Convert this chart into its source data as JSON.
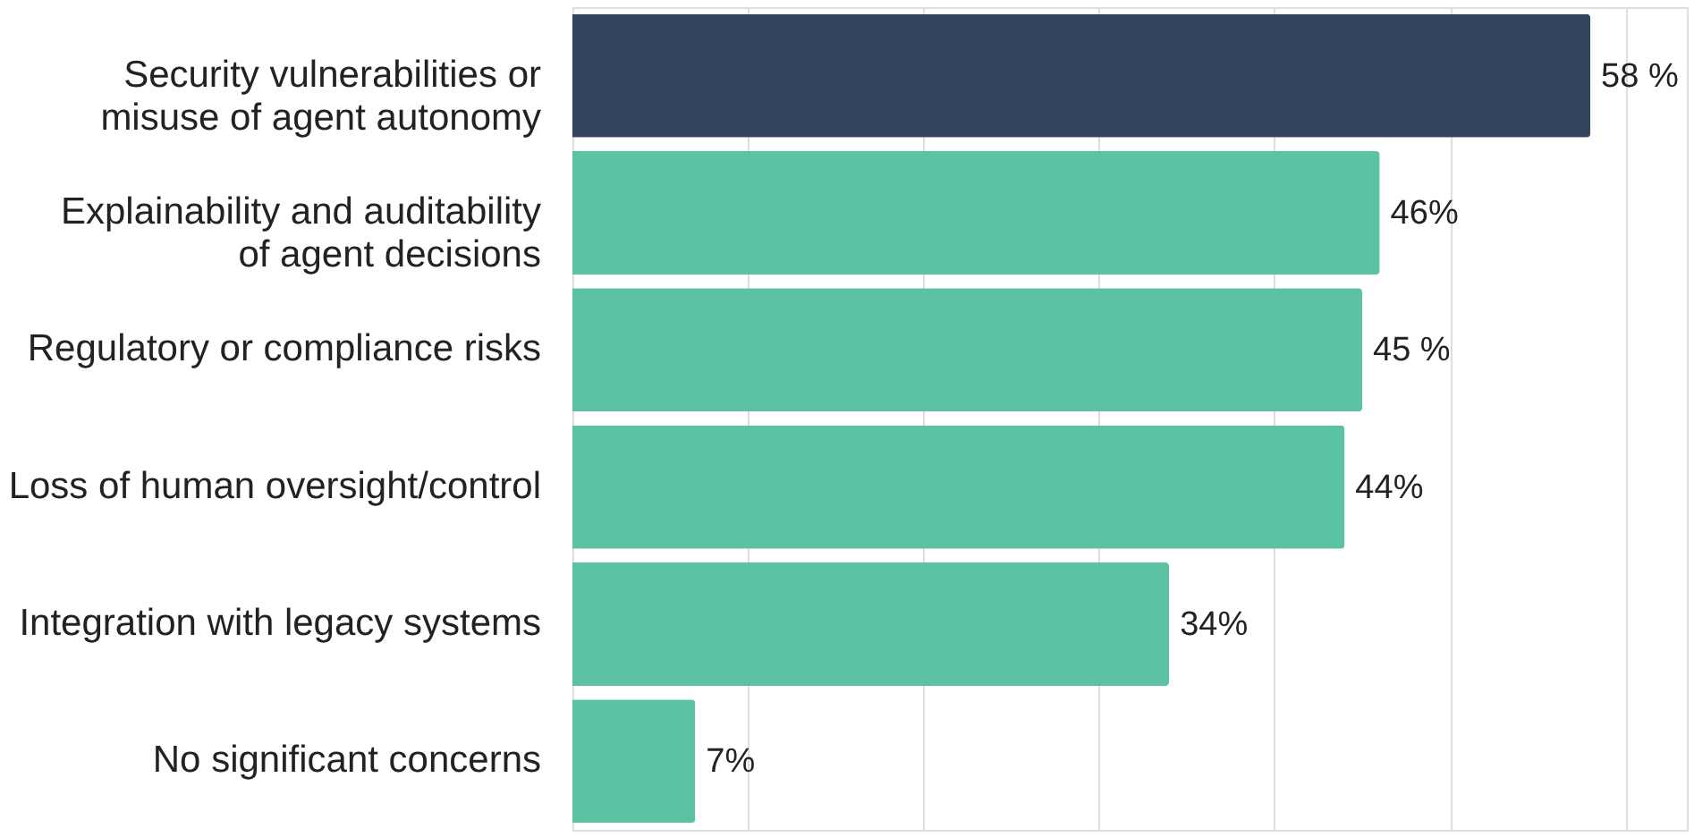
{
  "chart_data": {
    "type": "bar",
    "orientation": "horizontal",
    "categories": [
      "Security vulnerabilities or\nmisuse of agent autonomy",
      "Explainability and auditability\nof agent decisions",
      "Regulatory or compliance risks",
      "Loss of human oversight/control",
      "Integration with legacy systems",
      "No significant concerns"
    ],
    "values": [
      58,
      46,
      45,
      44,
      34,
      7
    ],
    "colors": [
      "#33445e",
      "#5bc2a3",
      "#5bc2a3",
      "#5bc2a3",
      "#5bc2a3",
      "#5bc2a3"
    ],
    "value_labels": [
      "58 %",
      "46%",
      "45 %",
      "44%",
      "34%",
      "7%"
    ],
    "xlim": [
      0,
      63.5
    ],
    "xticks": [
      {
        "value": 10,
        "label": null
      },
      {
        "value": 20,
        "label": null
      },
      {
        "value": 30,
        "label": null
      },
      {
        "value": 40,
        "label": null
      },
      {
        "value": 50,
        "label": null
      },
      {
        "value": 60,
        "label": null
      }
    ],
    "grid": "x",
    "tick_labels": "y"
  }
}
